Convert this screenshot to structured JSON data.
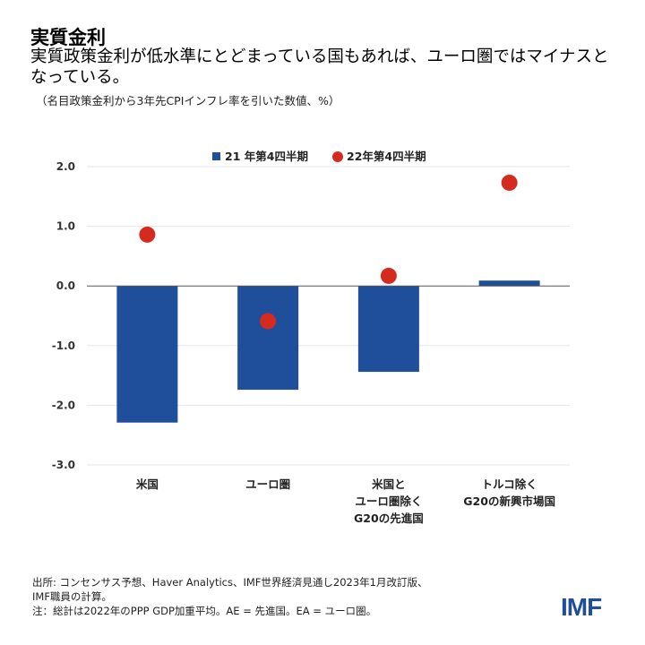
{
  "header": {
    "title": "実質金利",
    "subtitle": "実質政策金利が低水準にとどまっている国もあれば、ユーロ圏ではマイナスとなっている。",
    "note": "（名目政策金利から3年先CPIインフレ率を引いた数値、%）"
  },
  "chart_data": {
    "type": "bar",
    "categories": [
      [
        "米国"
      ],
      [
        "ユーロ圏"
      ],
      [
        "米国と",
        "ユーロ圏除く",
        "G20の先進国"
      ],
      [
        "トルコ除く",
        "G20の新興市場国"
      ]
    ],
    "series": [
      {
        "name": "21 年第4四半期",
        "mark": "bar",
        "color": "#1f4e9a",
        "values": [
          -2.29,
          -1.74,
          -1.44,
          0.09
        ]
      },
      {
        "name": "22年第4四半期",
        "mark": "dot",
        "color": "#d52b1e",
        "values": [
          0.86,
          -0.59,
          0.17,
          1.73
        ]
      }
    ],
    "ylim": [
      -3.0,
      2.0
    ],
    "yticks": [
      "2.0",
      "1.0",
      "0.0",
      "-1.0",
      "-2.0",
      "-3.0"
    ],
    "grid": true,
    "legend": "top-center"
  },
  "footer": {
    "source_line1": "出所: コンセンサス予想、Haver Analytics、IMF世界経済見通し2023年1月改訂版、",
    "source_line2": "IMF職員の計算。",
    "note": "注：総計は2022年のPPP GDP加重平均。AE = 先進国。EA = ユーロ圏。",
    "logo": "IMF"
  }
}
